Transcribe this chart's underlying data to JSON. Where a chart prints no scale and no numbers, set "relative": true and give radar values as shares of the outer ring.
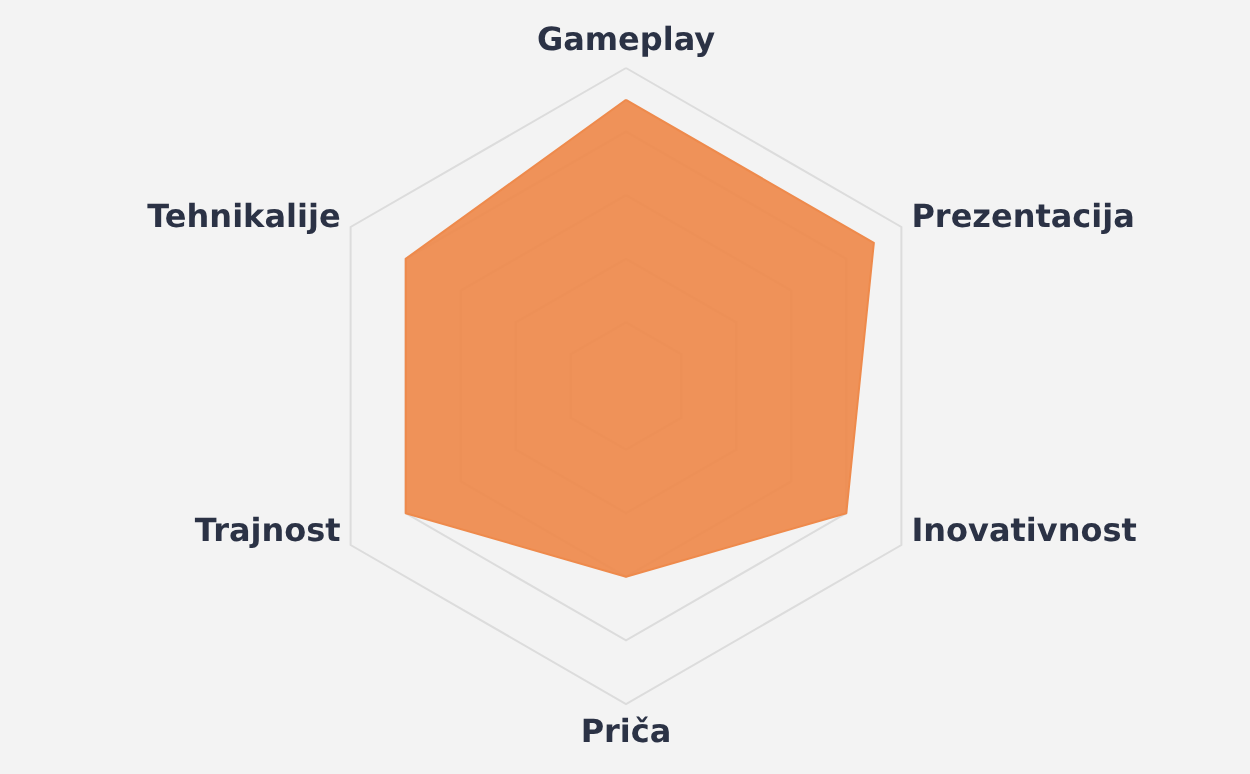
{
  "chart_data": {
    "type": "radar",
    "relative": true,
    "grid": true,
    "categories": [
      "Gameplay",
      "Prezentacija",
      "Inovativnost",
      "Priča",
      "Trajnost",
      "Tehnikalije"
    ],
    "series": [
      {
        "color": "#ee8a4c",
        "values": [
          0.9,
          0.9,
          0.8,
          0.6,
          0.8,
          0.8
        ]
      }
    ]
  }
}
